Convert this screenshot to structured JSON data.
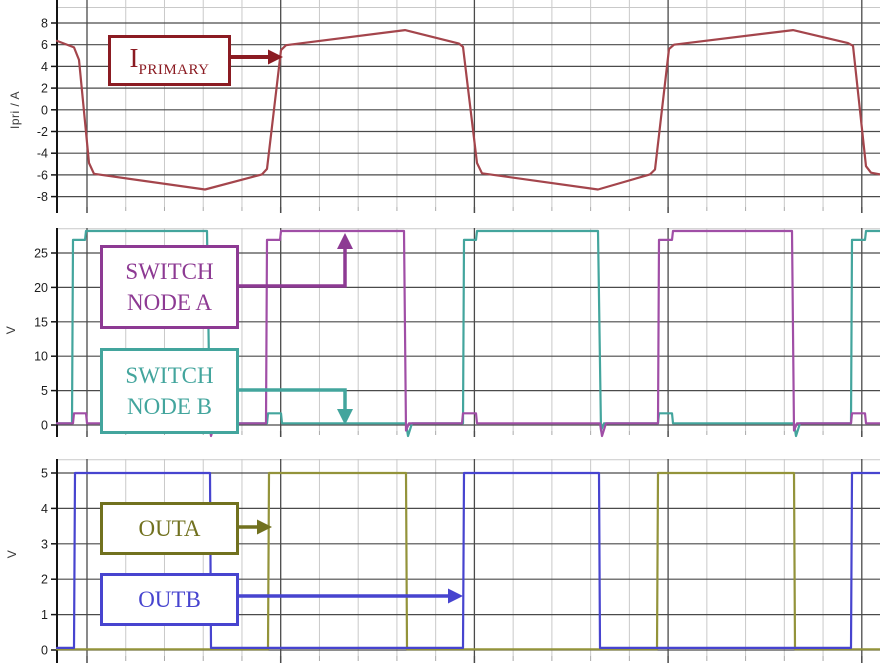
{
  "chart_data": [
    {
      "type": "line",
      "panel": "primary-current",
      "y_axis_title": "Ipri / A",
      "y_ticks": [
        8,
        6,
        4,
        2,
        0,
        -2,
        -4,
        -6,
        -8
      ],
      "y_range": [
        -9.3,
        10.1
      ],
      "x_axis_note": "time axis, ticks unlabeled",
      "grid": "on",
      "series": [
        {
          "name": "IPRIMARY",
          "color": "#a4454c",
          "points": [
            [
              57,
              6.35
            ],
            [
              74,
              5.75
            ],
            [
              79,
              4.6
            ],
            [
              89,
              -4.9
            ],
            [
              94,
              -5.9
            ],
            [
              205,
              -7.35
            ],
            [
              262,
              -5.95
            ],
            [
              267,
              -5.45
            ],
            [
              281,
              5.5
            ],
            [
              286,
              5.95
            ],
            [
              405,
              7.35
            ],
            [
              459,
              6.1
            ],
            [
              463,
              5.8
            ],
            [
              477,
              -4.9
            ],
            [
              482,
              -5.85
            ],
            [
              598,
              -7.35
            ],
            [
              650,
              -5.95
            ],
            [
              655,
              -5.5
            ],
            [
              669,
              5.6
            ],
            [
              674,
              6.0
            ],
            [
              793,
              7.35
            ],
            [
              848,
              6.15
            ],
            [
              853,
              5.9
            ],
            [
              866,
              -5.2
            ],
            [
              871,
              -5.8
            ],
            [
              880,
              -5.95
            ]
          ]
        }
      ],
      "annotations": [
        {
          "id": "iprimary",
          "main": "I",
          "sub": "PRIMARY",
          "color": "#8b1b22"
        }
      ]
    },
    {
      "type": "line",
      "panel": "switch-nodes",
      "y_axis_title": "V",
      "y_ticks": [
        25,
        20,
        15,
        10,
        5,
        0
      ],
      "y_range": [
        -1.7,
        28.6
      ],
      "x_axis_note": "time axis, ticks unlabeled",
      "grid": "on",
      "series": [
        {
          "name": "SWITCH NODE B",
          "color": "#43a59d",
          "points": [
            [
              57,
              0.25
            ],
            [
              72,
              0.25
            ],
            [
              73,
              26.9
            ],
            [
              85,
              26.9
            ],
            [
              86,
              28.2
            ],
            [
              207,
              28.2
            ],
            [
              210,
              -0.8
            ],
            [
              213,
              0.25
            ],
            [
              267,
              0.25
            ],
            [
              268,
              1.7
            ],
            [
              281,
              1.7
            ],
            [
              282,
              0.25
            ],
            [
              406,
              0.25
            ],
            [
              408,
              -1.6
            ],
            [
              412,
              0.25
            ],
            [
              463,
              0.25
            ],
            [
              464,
              26.9
            ],
            [
              476,
              26.9
            ],
            [
              477,
              28.2
            ],
            [
              598,
              28.2
            ],
            [
              601,
              -0.8
            ],
            [
              604,
              0.25
            ],
            [
              658,
              0.25
            ],
            [
              659,
              1.7
            ],
            [
              672,
              1.7
            ],
            [
              673,
              0.25
            ],
            [
              794,
              0.25
            ],
            [
              796,
              -1.6
            ],
            [
              800,
              0.25
            ],
            [
              851,
              0.25
            ],
            [
              852,
              26.9
            ],
            [
              865,
              26.9
            ],
            [
              866,
              28.2
            ],
            [
              880,
              28.2
            ]
          ]
        },
        {
          "name": "SWITCH NODE A",
          "color": "#a04ea6",
          "points": [
            [
              57,
              0.25
            ],
            [
              73,
              0.25
            ],
            [
              74,
              1.7
            ],
            [
              86,
              1.7
            ],
            [
              87,
              0.25
            ],
            [
              209,
              0.25
            ],
            [
              211,
              -1.6
            ],
            [
              215,
              0.25
            ],
            [
              266,
              0.25
            ],
            [
              267,
              26.9
            ],
            [
              280,
              26.9
            ],
            [
              281,
              28.2
            ],
            [
              404,
              28.2
            ],
            [
              406,
              -0.8
            ],
            [
              409,
              0.25
            ],
            [
              462,
              0.25
            ],
            [
              463,
              1.7
            ],
            [
              476,
              1.7
            ],
            [
              477,
              0.25
            ],
            [
              600,
              0.25
            ],
            [
              602,
              -1.6
            ],
            [
              606,
              0.25
            ],
            [
              658,
              0.25
            ],
            [
              659,
              26.9
            ],
            [
              672,
              26.9
            ],
            [
              673,
              28.2
            ],
            [
              792,
              28.2
            ],
            [
              794,
              -0.8
            ],
            [
              797,
              0.25
            ],
            [
              851,
              0.25
            ],
            [
              852,
              1.7
            ],
            [
              865,
              1.7
            ],
            [
              866,
              0.25
            ],
            [
              880,
              0.25
            ]
          ]
        }
      ],
      "annotations": [
        {
          "id": "nodeA",
          "lines": [
            "SWITCH",
            "NODE A"
          ],
          "color": "#8d3a93"
        },
        {
          "id": "nodeB",
          "lines": [
            "SWITCH",
            "NODE B"
          ],
          "color": "#43a59d"
        }
      ]
    },
    {
      "type": "line",
      "panel": "gate-outputs",
      "y_axis_title": "V",
      "y_ticks": [
        5,
        4,
        3,
        2,
        1,
        0
      ],
      "y_range": [
        -0.3,
        5.4
      ],
      "x_axis_note": "time axis, ticks unlabeled",
      "grid": "on",
      "series": [
        {
          "name": "OUTA",
          "color": "#93933a",
          "points": [
            [
              57,
              0.02
            ],
            [
              268,
              0.02
            ],
            [
              269,
              5
            ],
            [
              406,
              5
            ],
            [
              407,
              0.02
            ],
            [
              657,
              0.02
            ],
            [
              658,
              5
            ],
            [
              794,
              5
            ],
            [
              795,
              0.02
            ],
            [
              880,
              0.02
            ]
          ]
        },
        {
          "name": "OUTB",
          "color": "#4744cf",
          "points": [
            [
              57,
              0.06
            ],
            [
              74,
              0.06
            ],
            [
              75,
              5
            ],
            [
              210,
              5
            ],
            [
              211,
              0.06
            ],
            [
              463,
              0.06
            ],
            [
              464,
              5
            ],
            [
              599,
              5
            ],
            [
              600,
              0.06
            ],
            [
              851,
              0.06
            ],
            [
              852,
              5
            ],
            [
              880,
              5
            ]
          ]
        }
      ],
      "annotations": [
        {
          "id": "outa",
          "lines": [
            "OUTA"
          ],
          "color": "#71711f"
        },
        {
          "id": "outb",
          "lines": [
            "OUTB"
          ],
          "color": "#4744cf"
        }
      ]
    }
  ],
  "colors": {
    "background": "#ffffff",
    "grid_minor": "#c9c9c9",
    "grid_major": "#4a4a4a",
    "axis": "#141414",
    "tick_label": "#1d1d1d",
    "axis_title": "#3a3a3a"
  }
}
